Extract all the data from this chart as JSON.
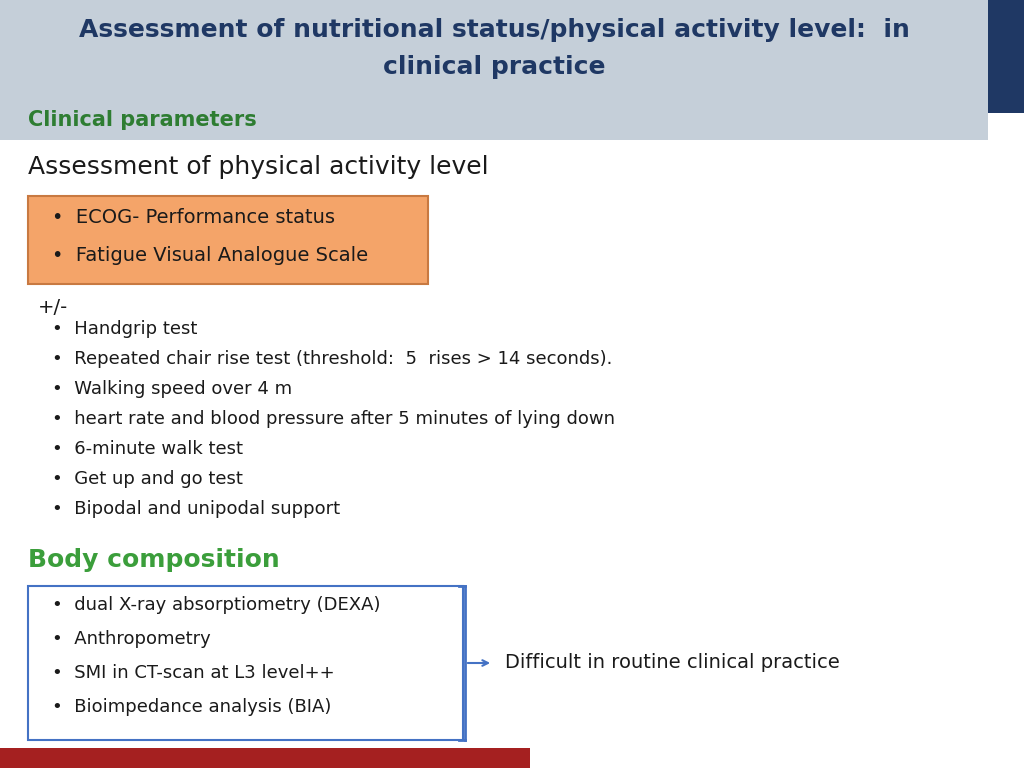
{
  "title_line1": "Assessment of nutritional status/physical activity level:  in",
  "title_line2": "clinical practice",
  "title_color": "#1F3864",
  "title_bg": "#C5CFD9",
  "section_label": "Clinical parameters",
  "section_label_color": "#2E7D32",
  "subtitle": "Assessment of physical activity level",
  "subtitle_color": "#1a1a1a",
  "orange_box_items": [
    "ECOG- Performance status",
    "Fatigue Visual Analogue Scale"
  ],
  "orange_box_bg": "#F4A469",
  "orange_box_border": "#C87941",
  "plus_minus": "+/-",
  "bullet_items": [
    "Handgrip test",
    "Repeated chair rise test (threshold:  5  rises > 14 seconds).",
    "Walking speed over 4 m",
    "heart rate and blood pressure after 5 minutes of lying down",
    "6-minute walk test",
    "Get up and go test",
    "Bipodal and unipodal support"
  ],
  "body_comp_label": "Body composition",
  "body_comp_color": "#3B9E3B",
  "blue_box_items": [
    "dual X-ray absorptiometry (DEXA)",
    "Anthropometry",
    "SMI in CT-scan at L3 level++",
    "Bioimpedance analysis (BIA)"
  ],
  "blue_box_border": "#4472C4",
  "bracket_text": "Difficult in routine clinical practice",
  "footer_bar_color": "#A52020",
  "right_bar_color": "#1F3864"
}
